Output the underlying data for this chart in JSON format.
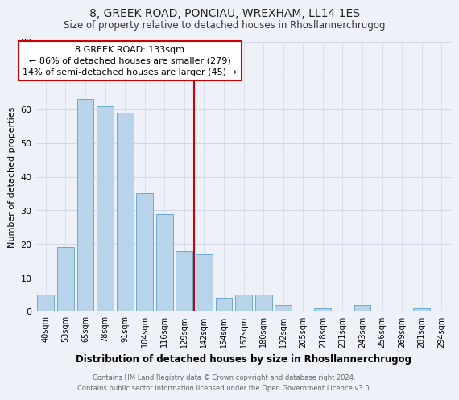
{
  "title_line1": "8, GREEK ROAD, PONCIAU, WREXHAM, LL14 1ES",
  "title_line2": "Size of property relative to detached houses in Rhosllannerchrugog",
  "xlabel": "Distribution of detached houses by size in Rhosllannerchrugog",
  "ylabel": "Number of detached properties",
  "bar_labels": [
    "40sqm",
    "53sqm",
    "65sqm",
    "78sqm",
    "91sqm",
    "104sqm",
    "116sqm",
    "129sqm",
    "142sqm",
    "154sqm",
    "167sqm",
    "180sqm",
    "192sqm",
    "205sqm",
    "218sqm",
    "231sqm",
    "243sqm",
    "256sqm",
    "269sqm",
    "281sqm",
    "294sqm"
  ],
  "bar_values": [
    5,
    19,
    63,
    61,
    59,
    35,
    29,
    18,
    17,
    4,
    5,
    5,
    2,
    0,
    1,
    0,
    2,
    0,
    0,
    1,
    0
  ],
  "bar_color": "#b8d4ea",
  "bar_edge_color": "#6aaad4",
  "annotation_text_line1": "8 GREEK ROAD: 133sqm",
  "annotation_text_line2": "← 86% of detached houses are smaller (279)",
  "annotation_text_line3": "14% of semi-detached houses are larger (45) →",
  "annotation_box_color": "#ffffff",
  "annotation_box_edge_color": "#cc0000",
  "vline_color": "#cc0000",
  "ylim": [
    0,
    80
  ],
  "yticks": [
    0,
    10,
    20,
    30,
    40,
    50,
    60,
    70,
    80
  ],
  "bg_color": "#eef2f8",
  "grid_color": "#d0d8e8",
  "footer_line1": "Contains HM Land Registry data © Crown copyright and database right 2024.",
  "footer_line2": "Contains public sector information licensed under the Open Government Licence v3.0."
}
